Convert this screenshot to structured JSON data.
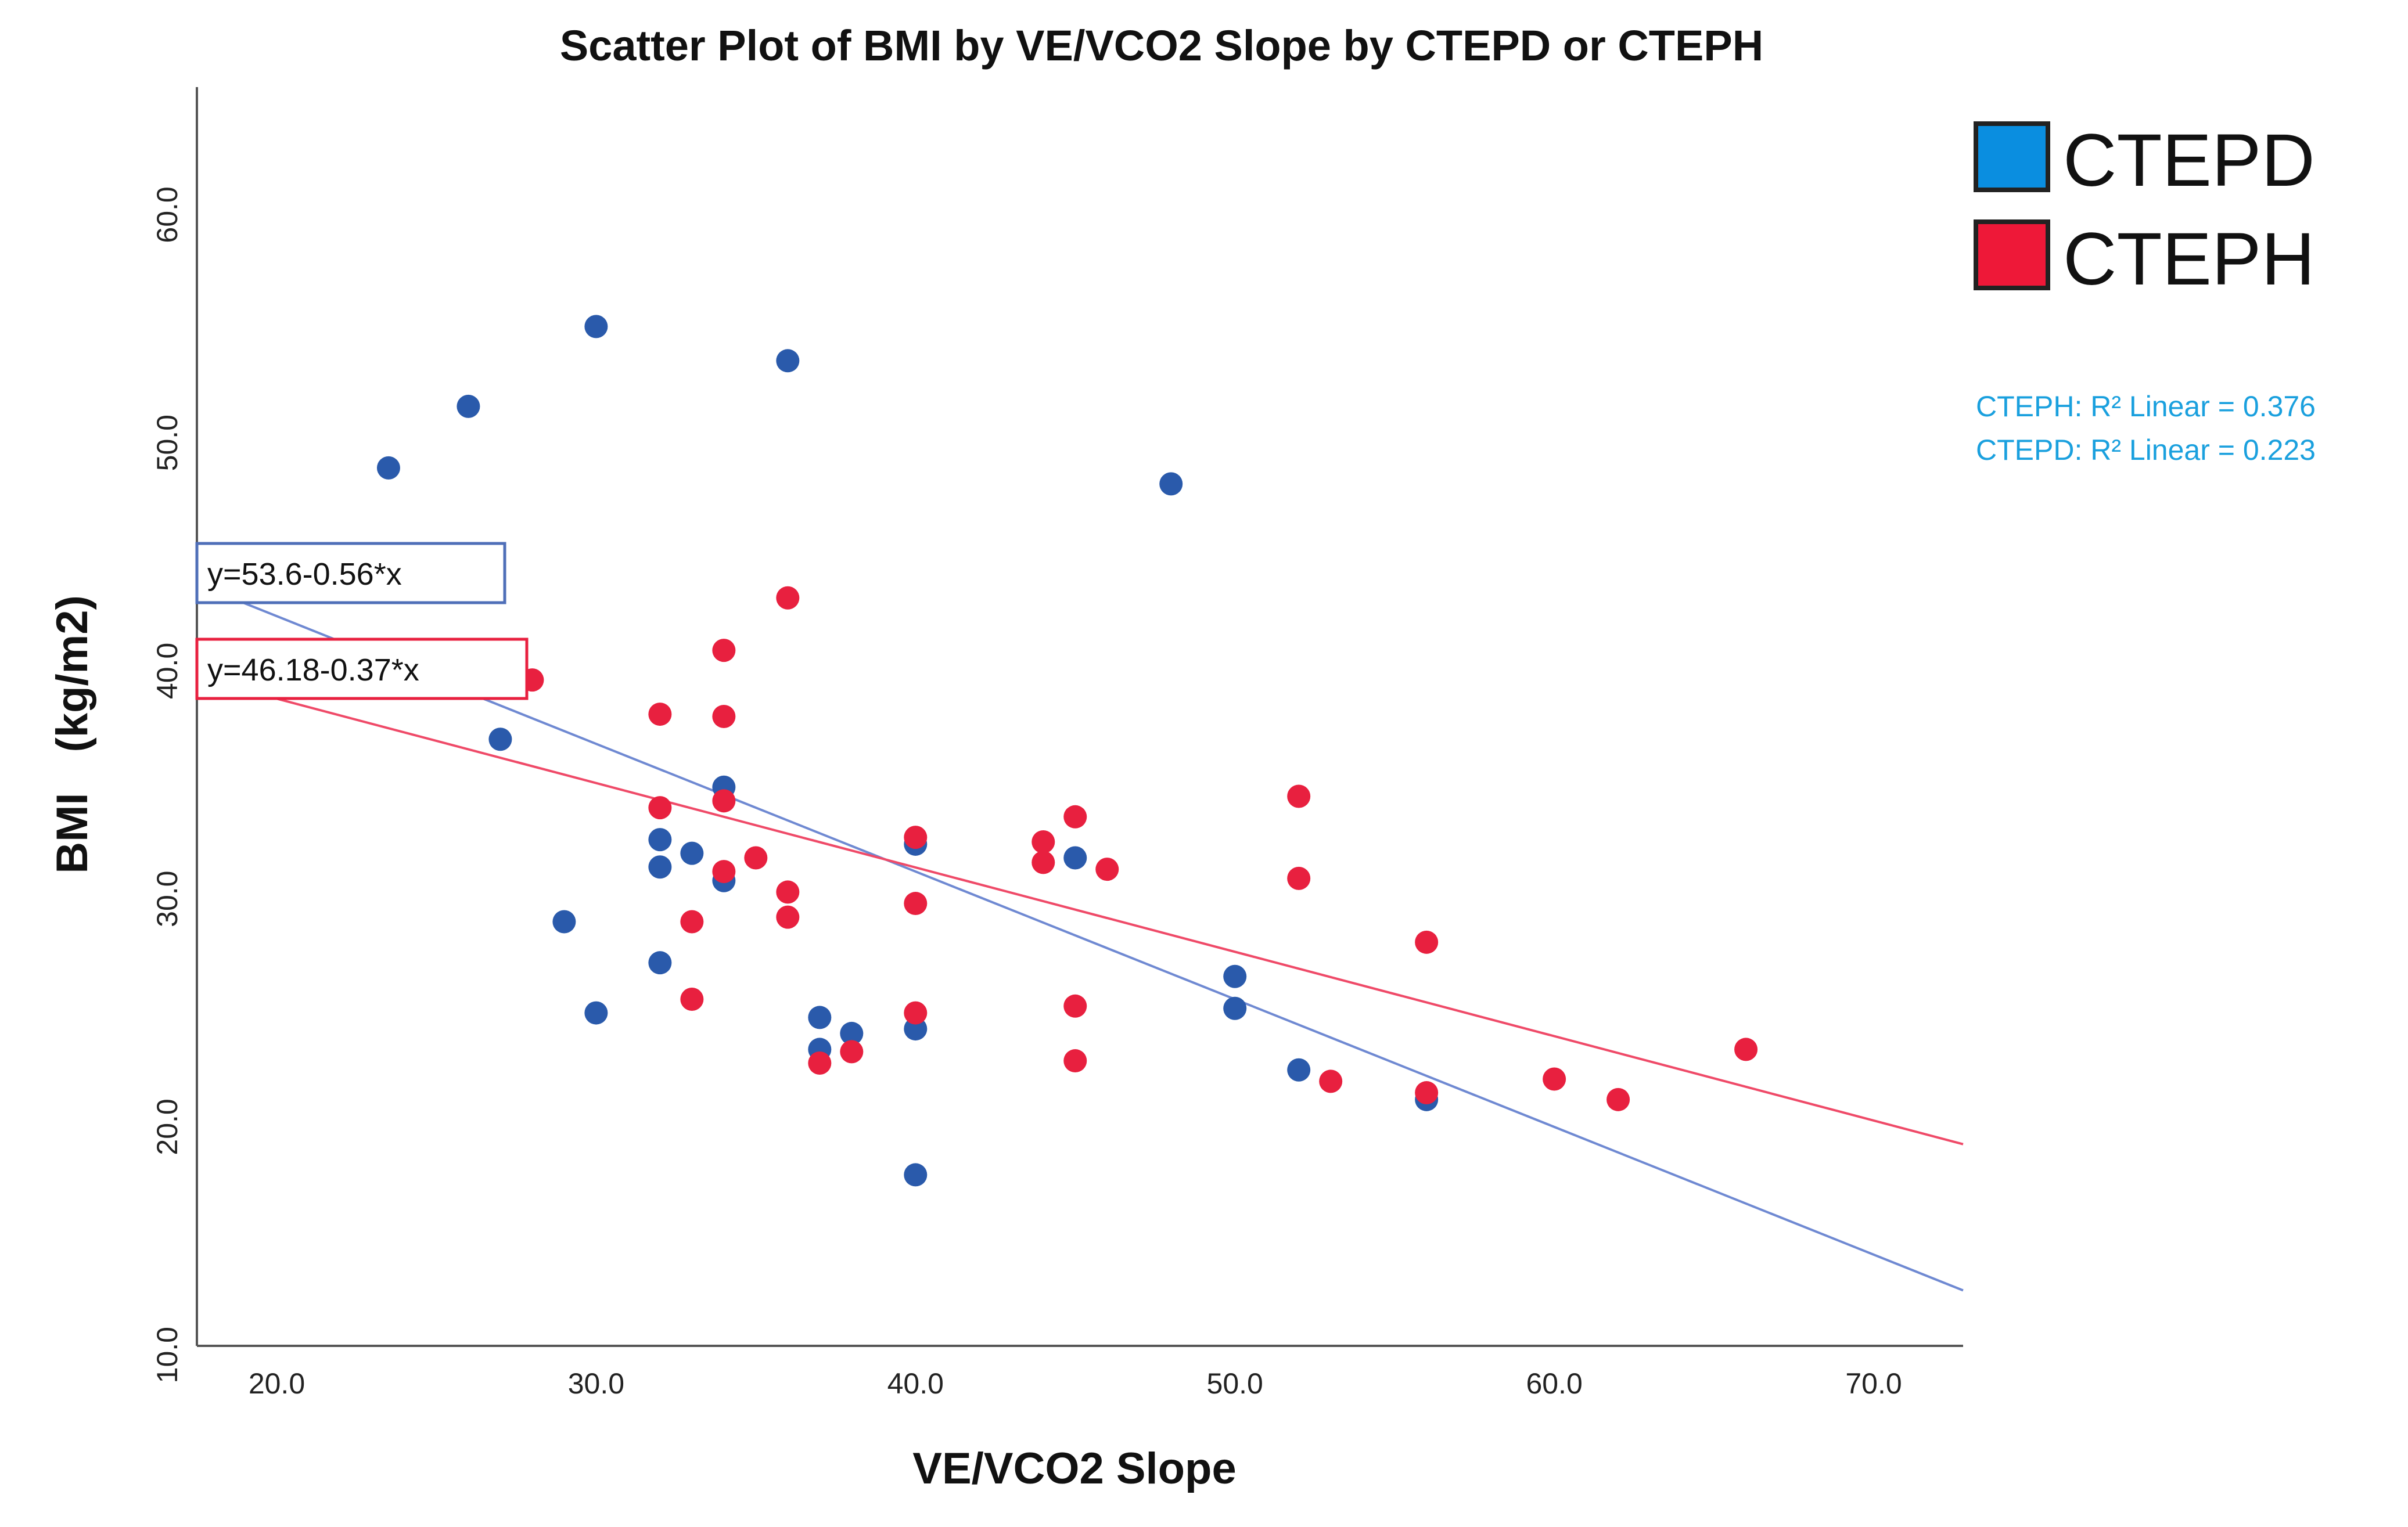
{
  "chart_data": {
    "type": "scatter",
    "title": "Scatter Plot of BMI by VE/VCO2 Slope by CTEPD or CTEPH",
    "xlabel": "VE/VCO2 Slope",
    "ylabel": "BMI",
    "ylabel_units": "(kg/m2)",
    "xlim": [
      17.5,
      72.8
    ],
    "ylim": [
      10.4,
      65.6
    ],
    "x_ticks": [
      "20.0",
      "30.0",
      "40.0",
      "50.0",
      "60.0",
      "70.0"
    ],
    "y_ticks": [
      "10.0",
      "20.0",
      "30.0",
      "40.0",
      "50.0",
      "60.0"
    ],
    "colors": {
      "CTEPD": "#2a5aab",
      "CTEPH": "#e8203f",
      "fitCTEPD": "#6f89d2",
      "fitCTEPH": "#ef4a68",
      "r2": "#1aa0de",
      "legendCTEPD": "#0a8ee0",
      "legendCTEPH": "#ee1838"
    },
    "series": [
      {
        "name": "CTEPD",
        "points": [
          [
            23.5,
            48.9
          ],
          [
            26,
            51.6
          ],
          [
            27,
            37.0
          ],
          [
            29,
            29.0
          ],
          [
            30,
            55.1
          ],
          [
            30,
            25.0
          ],
          [
            32,
            32.6
          ],
          [
            32,
            31.4
          ],
          [
            32,
            27.2
          ],
          [
            33,
            32.0
          ],
          [
            34,
            34.9
          ],
          [
            34,
            30.8
          ],
          [
            36,
            53.6
          ],
          [
            37,
            24.8
          ],
          [
            37,
            23.4
          ],
          [
            38,
            24.1
          ],
          [
            40,
            32.4
          ],
          [
            40,
            24.3
          ],
          [
            40,
            17.9
          ],
          [
            45,
            31.8
          ],
          [
            48,
            48.2
          ],
          [
            50,
            26.6
          ],
          [
            50,
            25.2
          ],
          [
            52,
            22.5
          ],
          [
            56,
            21.2
          ]
        ]
      },
      {
        "name": "CTEPH",
        "points": [
          [
            28,
            39.6
          ],
          [
            32,
            38.1
          ],
          [
            32,
            34.0
          ],
          [
            33,
            29.0
          ],
          [
            33,
            25.6
          ],
          [
            34,
            40.9
          ],
          [
            34,
            38.0
          ],
          [
            34,
            34.3
          ],
          [
            34,
            31.2
          ],
          [
            35,
            31.8
          ],
          [
            36,
            43.2
          ],
          [
            36,
            30.3
          ],
          [
            36,
            29.2
          ],
          [
            37,
            22.8
          ],
          [
            38,
            23.3
          ],
          [
            40,
            32.7
          ],
          [
            40,
            29.8
          ],
          [
            40,
            25.0
          ],
          [
            44,
            32.5
          ],
          [
            44,
            31.6
          ],
          [
            45,
            33.6
          ],
          [
            45,
            25.3
          ],
          [
            45,
            22.9
          ],
          [
            46,
            31.3
          ],
          [
            52,
            34.5
          ],
          [
            52,
            30.9
          ],
          [
            53,
            22.0
          ],
          [
            56,
            28.1
          ],
          [
            56,
            21.5
          ],
          [
            60,
            22.1
          ],
          [
            62,
            21.2
          ],
          [
            66,
            23.4
          ]
        ]
      }
    ],
    "fit_lines": [
      {
        "series": "CTEPD",
        "intercept": 53.6,
        "slope": -0.56,
        "equation": "y=53.6-0.56*x",
        "r2_label": "CTEPD: R² Linear = 0.223"
      },
      {
        "series": "CTEPH",
        "intercept": 46.18,
        "slope": -0.37,
        "equation": "y=46.18-0.37*x",
        "r2_label": "CTEPH: R² Linear = 0.376"
      }
    ],
    "legend": {
      "position": "top-right",
      "entries": [
        "CTEPD",
        "CTEPH"
      ]
    }
  }
}
